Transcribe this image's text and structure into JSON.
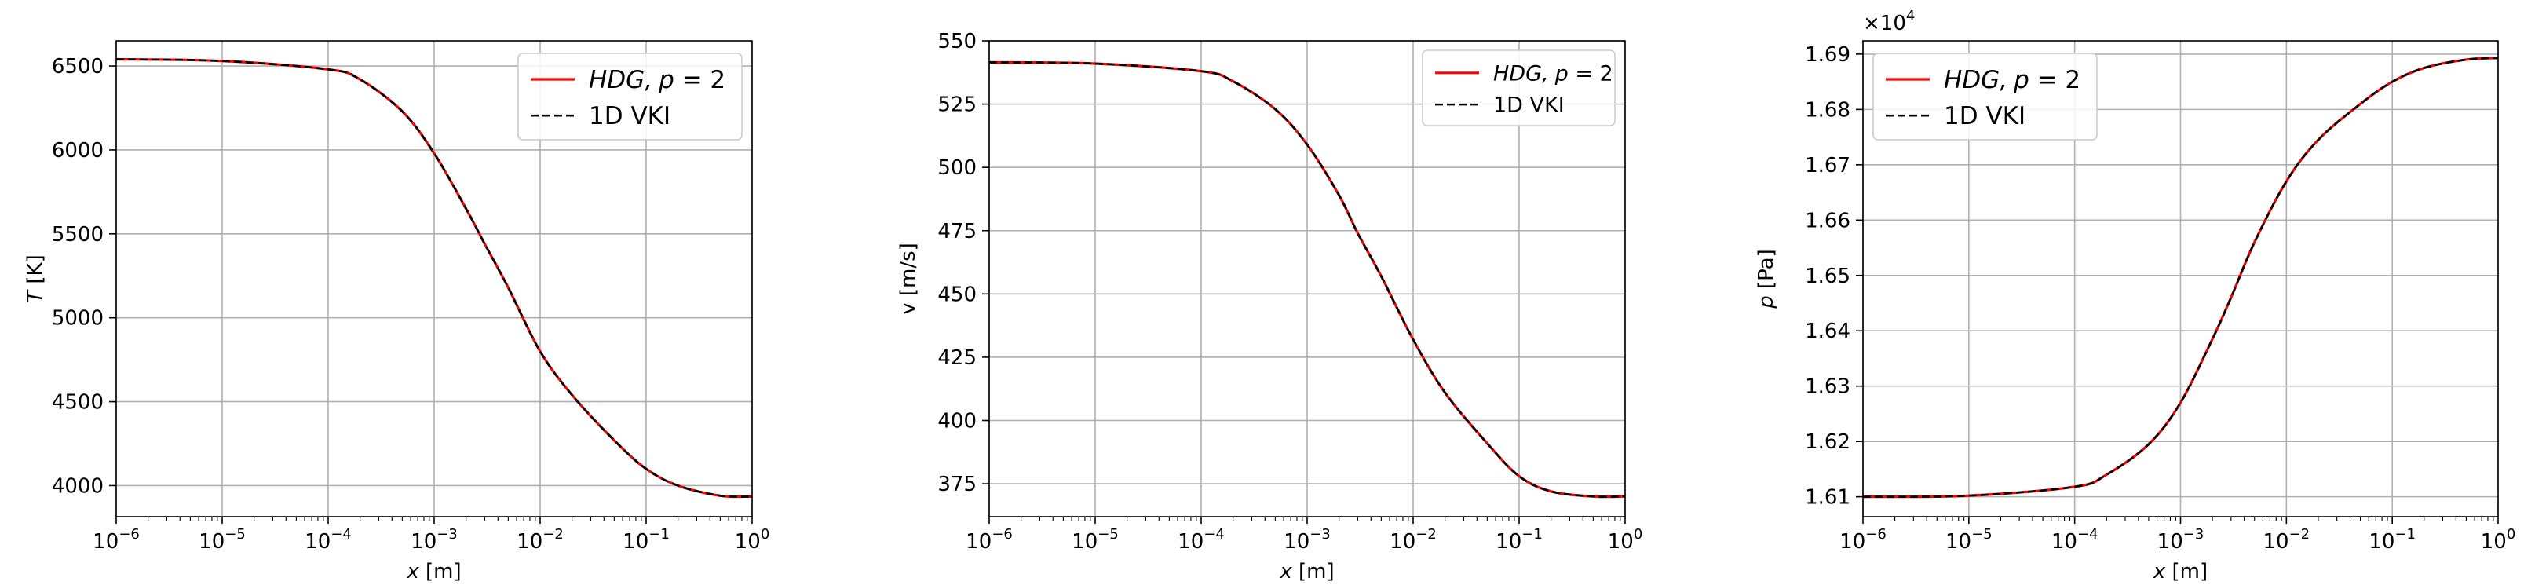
{
  "figure": {
    "background": "#ffffff",
    "grid_color": "#b0b0b0"
  },
  "chart_data": [
    {
      "type": "line",
      "xscale": "log",
      "xlim": [
        1e-06,
        1
      ],
      "ylim": [
        3815,
        6650
      ],
      "x_ticks": [
        1e-06,
        1e-05,
        0.0001,
        0.001,
        0.01,
        0.1,
        1
      ],
      "x_tick_exponents": [
        "−6",
        "−5",
        "−4",
        "−3",
        "−2",
        "−1",
        "0"
      ],
      "y_ticks": [
        4000,
        4500,
        5000,
        5500,
        6000,
        6500
      ],
      "y_tick_labels": [
        "4000",
        "4500",
        "5000",
        "5500",
        "6000",
        "6500"
      ],
      "xlabel_var": "x",
      "xlabel_unit": " [m]",
      "ylabel_var": "T",
      "ylabel_unit": " [K]",
      "ylabel": "",
      "offset_text": "",
      "legend": {
        "placement": "top-right",
        "entries": [
          {
            "label_main": "HDG,",
            "label_math": "p",
            "label_rest": " = 2",
            "style": "solid",
            "color": "#ff0000"
          },
          {
            "label_main": "1D VKI",
            "label_math": "",
            "label_rest": "",
            "style": "dashed",
            "color": "#000000"
          }
        ]
      },
      "grid": true,
      "series": [
        {
          "name": "HDG, p = 2",
          "color": "#ff0000",
          "style": "solid",
          "x": [
            1e-06,
            1e-05,
            0.0001,
            0.0002,
            0.0005,
            0.001,
            0.002,
            0.003,
            0.005,
            0.01,
            0.02,
            0.05,
            0.1,
            0.2,
            0.5,
            1
          ],
          "y": [
            6540,
            6530,
            6480,
            6420,
            6230,
            5980,
            5650,
            5440,
            5180,
            4800,
            4540,
            4270,
            4100,
            4000,
            3940,
            3935
          ]
        },
        {
          "name": "1D VKI",
          "color": "#000000",
          "style": "dashed",
          "x": [
            1e-06,
            1e-05,
            0.0001,
            0.0002,
            0.0005,
            0.001,
            0.002,
            0.003,
            0.005,
            0.01,
            0.02,
            0.05,
            0.1,
            0.2,
            0.5,
            1
          ],
          "y": [
            6540,
            6530,
            6480,
            6420,
            6230,
            5980,
            5650,
            5440,
            5180,
            4800,
            4540,
            4270,
            4100,
            4000,
            3940,
            3935
          ]
        }
      ]
    },
    {
      "type": "line",
      "xscale": "log",
      "xlim": [
        1e-06,
        1
      ],
      "ylim": [
        362,
        550
      ],
      "x_ticks": [
        1e-06,
        1e-05,
        0.0001,
        0.001,
        0.01,
        0.1,
        1
      ],
      "x_tick_exponents": [
        "−6",
        "−5",
        "−4",
        "−3",
        "−2",
        "−1",
        "0"
      ],
      "y_ticks": [
        375,
        400,
        425,
        450,
        475,
        500,
        525,
        550
      ],
      "y_tick_labels": [
        "375",
        "400",
        "425",
        "450",
        "475",
        "500",
        "525",
        "550"
      ],
      "xlabel_var": "x",
      "xlabel_unit": " [m]",
      "ylabel_var": "",
      "ylabel_unit": "",
      "ylabel": "v [m/s]",
      "offset_text": "",
      "legend": {
        "placement": "top-right",
        "entries": [
          {
            "label_main": "HDG,",
            "label_math": "p",
            "label_rest": " = 2",
            "style": "solid",
            "color": "#ff0000"
          },
          {
            "label_main": "1D VKI",
            "label_math": "",
            "label_rest": "",
            "style": "dashed",
            "color": "#000000"
          }
        ]
      },
      "grid": true,
      "series": [
        {
          "name": "HDG, p = 2",
          "color": "#ff0000",
          "style": "solid",
          "x": [
            1e-06,
            1e-05,
            0.0001,
            0.0002,
            0.0005,
            0.001,
            0.002,
            0.003,
            0.005,
            0.01,
            0.02,
            0.05,
            0.1,
            0.2,
            0.5,
            1
          ],
          "y": [
            541.5,
            541,
            538,
            534,
            523,
            509,
            489,
            474,
            457,
            432,
            411,
            391,
            378,
            372,
            370,
            370
          ]
        },
        {
          "name": "1D VKI",
          "color": "#000000",
          "style": "dashed",
          "x": [
            1e-06,
            1e-05,
            0.0001,
            0.0002,
            0.0005,
            0.001,
            0.002,
            0.003,
            0.005,
            0.01,
            0.02,
            0.05,
            0.1,
            0.2,
            0.5,
            1
          ],
          "y": [
            541.5,
            541,
            538,
            534,
            523,
            509,
            489,
            474,
            457,
            432,
            411,
            391,
            378,
            372,
            370,
            370
          ]
        }
      ]
    },
    {
      "type": "line",
      "xscale": "log",
      "xlim": [
        1e-06,
        1
      ],
      "ylim": [
        16064,
        16924
      ],
      "x_ticks": [
        1e-06,
        1e-05,
        0.0001,
        0.001,
        0.01,
        0.1,
        1
      ],
      "x_tick_exponents": [
        "−6",
        "−5",
        "−4",
        "−3",
        "−2",
        "−1",
        "0"
      ],
      "y_ticks": [
        16100,
        16200,
        16300,
        16400,
        16500,
        16600,
        16700,
        16800,
        16900
      ],
      "y_tick_labels": [
        "1.61",
        "1.62",
        "1.63",
        "1.64",
        "1.65",
        "1.66",
        "1.67",
        "1.68",
        "1.69"
      ],
      "xlabel_var": "x",
      "xlabel_unit": " [m]",
      "ylabel_var": "p",
      "ylabel_unit": " [Pa]",
      "ylabel": "",
      "offset_text": "×10",
      "offset_exp": "4",
      "legend": {
        "placement": "top-left",
        "entries": [
          {
            "label_main": "HDG,",
            "label_math": "p",
            "label_rest": " = 2",
            "style": "solid",
            "color": "#ff0000"
          },
          {
            "label_main": "1D VKI",
            "label_math": "",
            "label_rest": "",
            "style": "dashed",
            "color": "#000000"
          }
        ]
      },
      "grid": true,
      "series": [
        {
          "name": "HDG, p = 2",
          "color": "#ff0000",
          "style": "solid",
          "x": [
            1e-06,
            1e-05,
            0.0001,
            0.0002,
            0.0005,
            0.001,
            0.002,
            0.003,
            0.005,
            0.01,
            0.02,
            0.05,
            0.1,
            0.2,
            0.5,
            1
          ],
          "y": [
            16100,
            16102,
            16118,
            16140,
            16195,
            16270,
            16385,
            16460,
            16560,
            16670,
            16745,
            16810,
            16850,
            16875,
            16890,
            16893
          ]
        },
        {
          "name": "1D VKI",
          "color": "#000000",
          "style": "dashed",
          "x": [
            1e-06,
            1e-05,
            0.0001,
            0.0002,
            0.0005,
            0.001,
            0.002,
            0.003,
            0.005,
            0.01,
            0.02,
            0.05,
            0.1,
            0.2,
            0.5,
            1
          ],
          "y": [
            16100,
            16102,
            16118,
            16140,
            16195,
            16270,
            16385,
            16460,
            16560,
            16670,
            16745,
            16810,
            16850,
            16875,
            16890,
            16893
          ]
        }
      ]
    }
  ]
}
